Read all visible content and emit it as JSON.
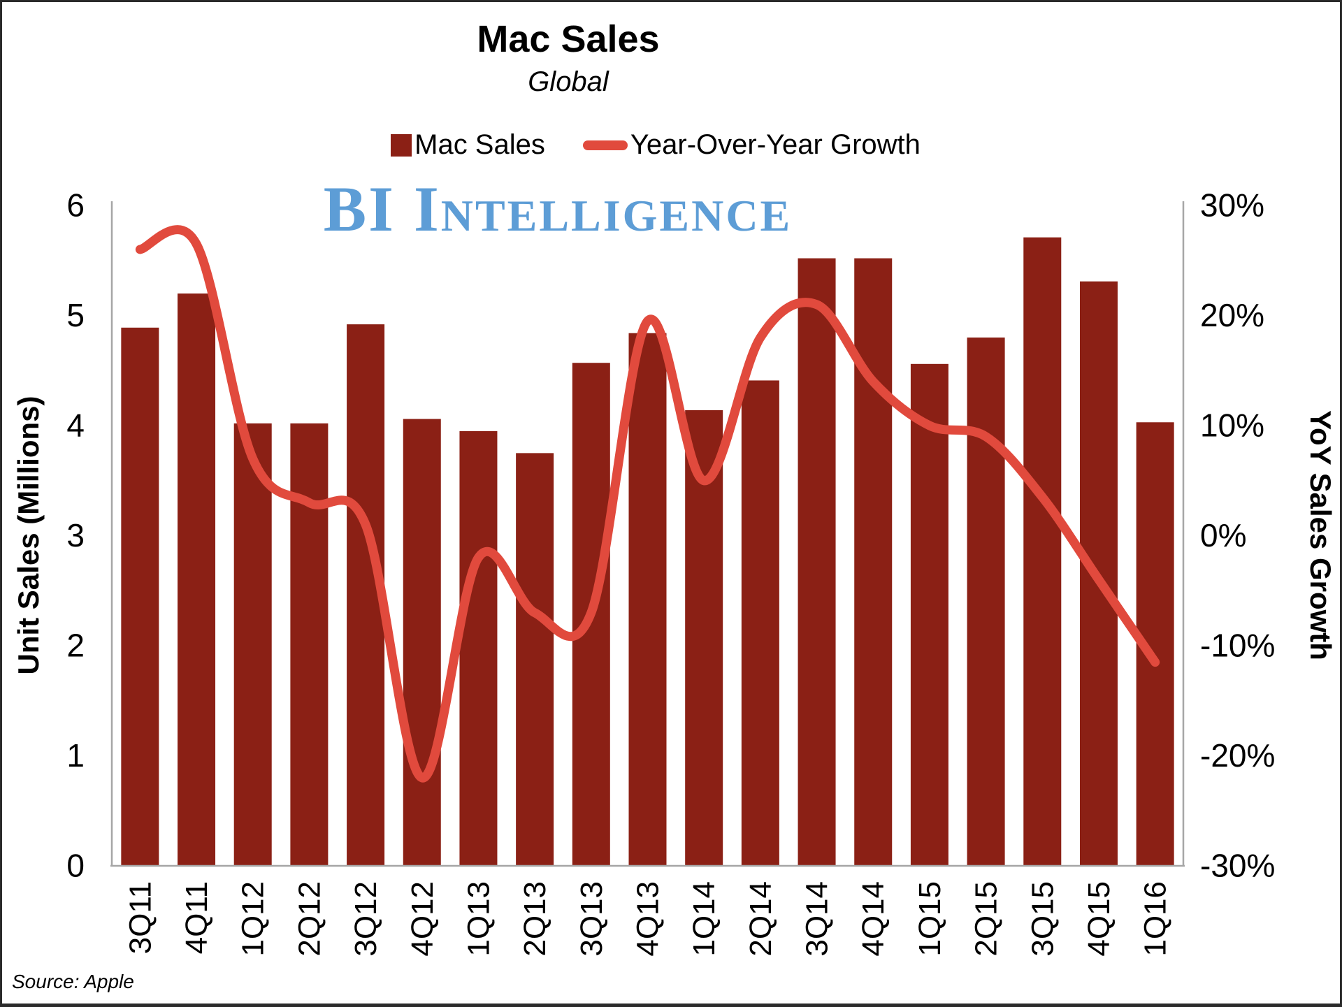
{
  "page": {
    "background": "#ffffff",
    "border_color": "#2b2b2b"
  },
  "header": {
    "title": "Mac Sales",
    "subtitle": "Global"
  },
  "legend": {
    "items": [
      {
        "label": "Mac Sales",
        "marker": "square",
        "color": "#8b2015"
      },
      {
        "label": "Year-Over-Year Growth",
        "marker": "line",
        "color": "#e14a3d"
      }
    ]
  },
  "watermark": {
    "text": "BI Intelligence",
    "color": "#5d9dd6"
  },
  "source_note": "Source: Apple",
  "chart_data": {
    "type": "bar",
    "subtype": "bar+line combo, dual axis",
    "title": "Mac Sales",
    "subtitle": "Global",
    "categories": [
      "3Q11",
      "4Q11",
      "1Q12",
      "2Q12",
      "3Q12",
      "4Q12",
      "1Q13",
      "2Q13",
      "3Q13",
      "4Q13",
      "1Q14",
      "2Q14",
      "3Q14",
      "4Q14",
      "1Q15",
      "2Q15",
      "3Q15",
      "4Q15",
      "1Q16"
    ],
    "series": [
      {
        "name": "Mac Sales",
        "type": "bar",
        "axis": "left",
        "units": "millions of units",
        "color": "#8b2015",
        "values": [
          4.89,
          5.2,
          4.02,
          4.02,
          4.92,
          4.06,
          3.95,
          3.75,
          4.57,
          4.84,
          4.14,
          4.41,
          5.52,
          5.52,
          4.56,
          4.8,
          5.71,
          5.31,
          4.03
        ]
      },
      {
        "name": "Year-Over-Year Growth",
        "type": "line",
        "axis": "right",
        "units": "percent",
        "color": "#e14a3d",
        "values": [
          26,
          26.5,
          7,
          3,
          1,
          -22,
          -2,
          -7,
          -7,
          19.5,
          5,
          18,
          21,
          14,
          10,
          9,
          3.5,
          -4,
          -11.5
        ]
      }
    ],
    "left_axis": {
      "title": "Unit Sales (Millions)",
      "min": 0,
      "max": 6,
      "ticks": [
        0,
        1,
        2,
        3,
        4,
        5,
        6
      ]
    },
    "right_axis": {
      "title": "YoY Sales Growth",
      "min": -30,
      "max": 30,
      "ticks": [
        30,
        20,
        10,
        0,
        -10,
        -20,
        -30
      ],
      "tick_suffix": "%"
    },
    "grid": false,
    "legend_position": "top",
    "axis_line_color": "#a6a6a6"
  }
}
